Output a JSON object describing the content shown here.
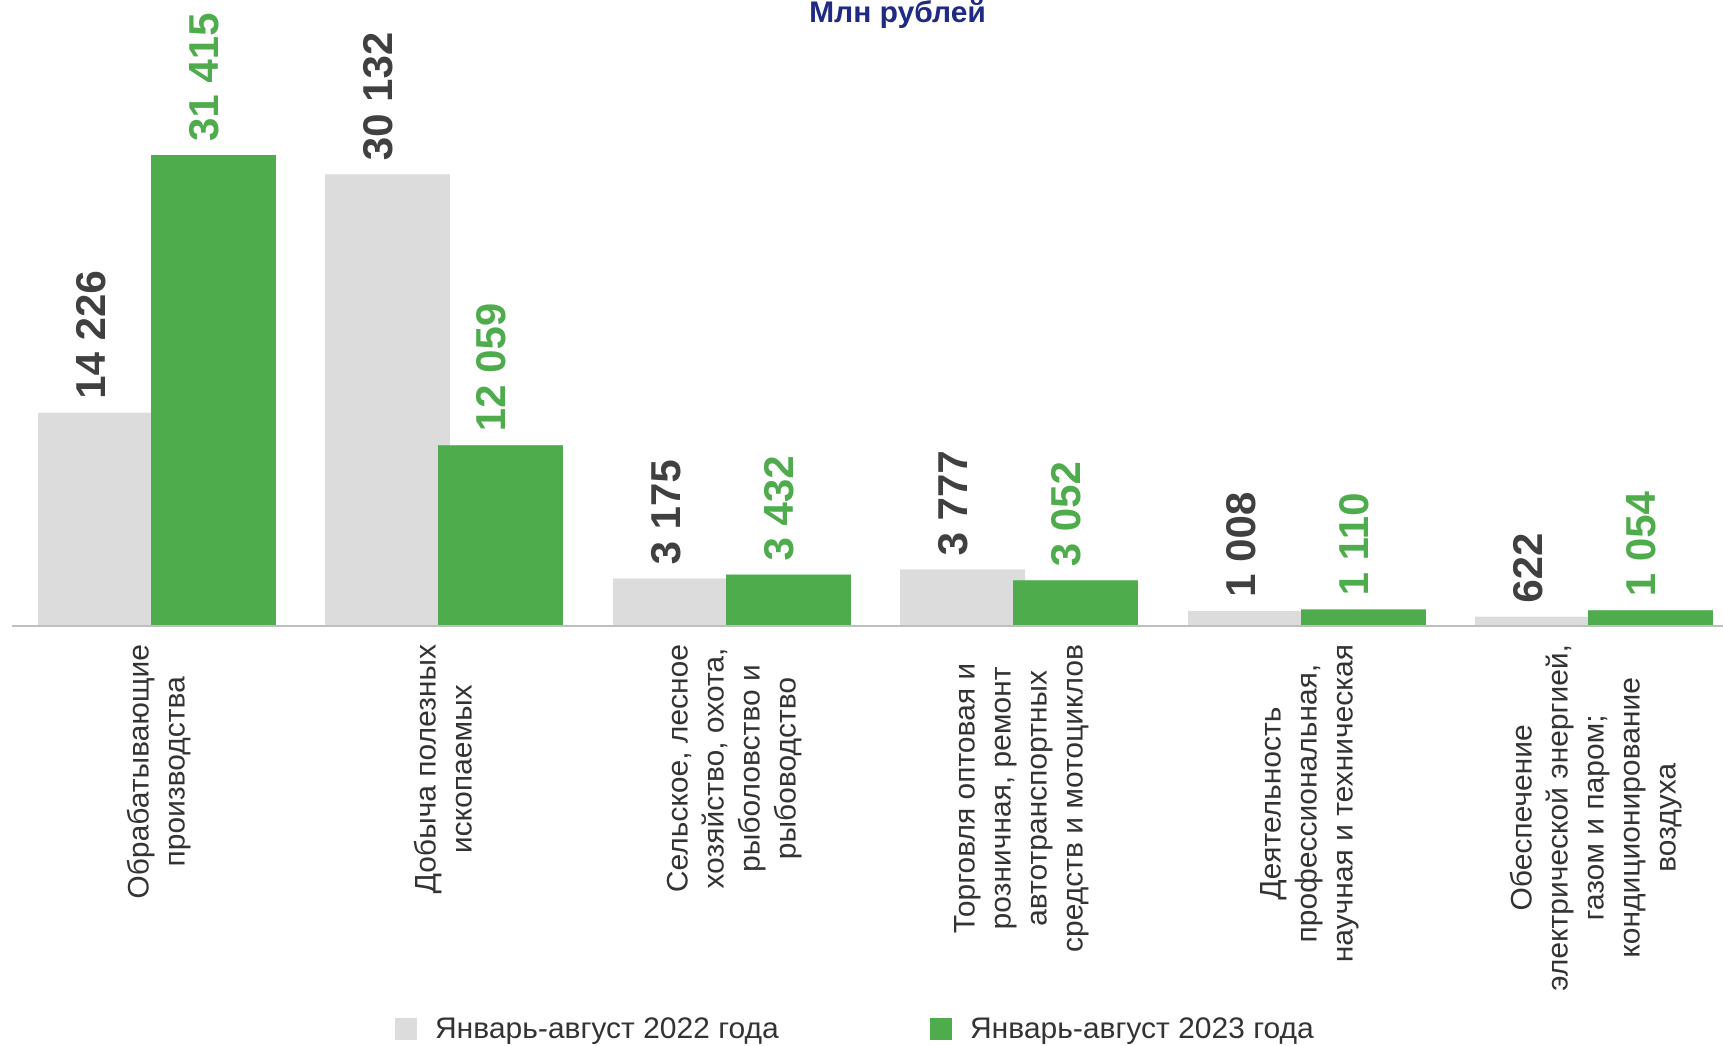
{
  "title": "Млн рублей",
  "colors": {
    "s2022": "#dcdcdc",
    "s2023": "#4fac4d",
    "label2022": "#404040",
    "label2023": "#4fac4d",
    "axis": "#bfbfbf",
    "text": "#333333"
  },
  "legend": [
    {
      "label": "Январь-август 2022 года",
      "color": "#dcdcdc"
    },
    {
      "label": "Январь-август 2023 года",
      "color": "#4fac4d"
    }
  ],
  "chart_data": {
    "type": "bar",
    "title": "Млн рублей",
    "categories": [
      [
        "Обрабатывающие",
        "производства"
      ],
      [
        "Добыча полезных",
        "ископаемых"
      ],
      [
        "Сельское, лесное",
        "хозяйство, охота,",
        "рыболовство и",
        "рыбоводство"
      ],
      [
        "Торговля оптовая и",
        "розничная, ремонт",
        "автотранспортных",
        "средств и мотоциклов"
      ],
      [
        "Деятельность",
        "профессиональная,",
        "научная и техническая"
      ],
      [
        "Обеспечение",
        "электрической энергией,",
        "газом и паром;",
        "кондиционирование",
        "воздуха"
      ]
    ],
    "series": [
      {
        "name": "Январь-август 2022 года",
        "values": [
          14226,
          30132,
          3175,
          3777,
          1008,
          622
        ],
        "labels": [
          "14 226",
          "30 132",
          "3 175",
          "3 777",
          "1 008",
          "622"
        ]
      },
      {
        "name": "Январь-август 2023 года",
        "values": [
          31415,
          12059,
          3432,
          3052,
          1110,
          1054
        ],
        "labels": [
          "31 415",
          "12 059",
          "3 432",
          "3 052",
          "1 110",
          "1 054"
        ]
      }
    ],
    "ylim": [
      0,
      31415
    ],
    "grid": false,
    "legend_position": "bottom"
  }
}
